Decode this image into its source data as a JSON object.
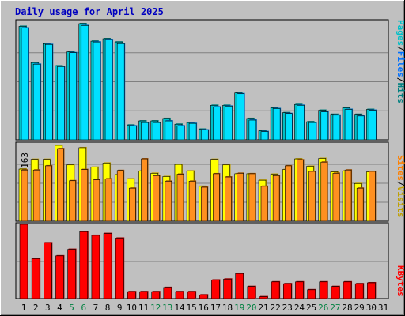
{
  "title": "Daily usage for April 2025",
  "colors": {
    "background": "#C0C0C0",
    "hits_face": "#00C0C8",
    "hits_shadow": "#008080",
    "files_face": "#00E0FF",
    "files_shadow": "#0070C0",
    "visits_face": "#FFFF00",
    "visits_shadow": "#C0A000",
    "sites_face": "#FF9020",
    "sites_shadow": "#A05000",
    "kbytes_face": "#FF0000",
    "kbytes_shadow": "#A00000",
    "title_text": "#0000C0",
    "weekend_label": "#008040",
    "weekday_label": "#000000",
    "label_pages": "#00C0C8",
    "label_files": "#0070FF",
    "label_hits": "#008080",
    "label_sites": "#FF8000",
    "label_visits": "#C0A000",
    "label_kbytes": "#FF0000"
  },
  "chart_data": [
    {
      "type": "bar",
      "panel": "hits-files-pages",
      "categories": [
        "1",
        "2",
        "3",
        "4",
        "5",
        "6",
        "7",
        "8",
        "9",
        "10",
        "11",
        "12",
        "13",
        "14",
        "15",
        "16",
        "17",
        "18",
        "19",
        "20",
        "21",
        "22",
        "23",
        "24",
        "25",
        "26",
        "27",
        "28",
        "29",
        "30",
        "31"
      ],
      "weekend_days": [
        "5",
        "6",
        "12",
        "13",
        "19",
        "20",
        "26",
        "27"
      ],
      "ymax_label": "7063",
      "ylim": [
        0,
        7063
      ],
      "legend": {
        "pages": "Pages",
        "files": "Files",
        "hits": "Hits",
        "separator": "/"
      },
      "series": [
        {
          "name": "Hits",
          "values": [
            6900,
            4700,
            5850,
            4500,
            5350,
            7063,
            6000,
            6150,
            5950,
            900,
            1150,
            1150,
            1300,
            950,
            1050,
            650,
            2100,
            2100,
            2850,
            1300,
            550,
            1950,
            1650,
            2150,
            1100,
            1800,
            1550,
            1950,
            1550,
            1850,
            0
          ]
        },
        {
          "name": "Files",
          "values": [
            6800,
            4600,
            5800,
            4450,
            5300,
            6950,
            5950,
            6100,
            5850,
            850,
            1050,
            1050,
            1150,
            850,
            1000,
            600,
            2000,
            2050,
            2800,
            1200,
            500,
            1900,
            1600,
            2100,
            1050,
            1700,
            1500,
            1850,
            1450,
            1800,
            0
          ]
        }
      ]
    },
    {
      "type": "bar",
      "panel": "visits-sites",
      "categories": [
        "1",
        "2",
        "3",
        "4",
        "5",
        "6",
        "7",
        "8",
        "9",
        "10",
        "11",
        "12",
        "13",
        "14",
        "15",
        "16",
        "17",
        "18",
        "19",
        "20",
        "21",
        "22",
        "23",
        "24",
        "25",
        "26",
        "27",
        "28",
        "29",
        "30",
        "31"
      ],
      "ymax_label": "163",
      "ylim": [
        0,
        163
      ],
      "legend": {
        "sites": "Sites",
        "visits": "Visits",
        "separator": "/"
      },
      "series": [
        {
          "name": "Visits",
          "values": [
            112,
            133,
            133,
            163,
            121,
            158,
            116,
            125,
            100,
            91,
            108,
            103,
            96,
            122,
            108,
            75,
            133,
            121,
            102,
            102,
            88,
            101,
            111,
            134,
            118,
            135,
            106,
            108,
            81,
            106,
            0
          ]
        },
        {
          "name": "Sites",
          "values": [
            110,
            110,
            119,
            156,
            87,
            111,
            89,
            91,
            109,
            71,
            134,
            98,
            86,
            101,
            86,
            73,
            102,
            95,
            103,
            102,
            75,
            98,
            119,
            132,
            107,
            127,
            103,
            110,
            71,
            107,
            0
          ]
        }
      ]
    },
    {
      "type": "bar",
      "panel": "kbytes",
      "categories": [
        "1",
        "2",
        "3",
        "4",
        "5",
        "6",
        "7",
        "8",
        "9",
        "10",
        "11",
        "12",
        "13",
        "14",
        "15",
        "16",
        "17",
        "18",
        "19",
        "20",
        "21",
        "22",
        "23",
        "24",
        "25",
        "26",
        "27",
        "28",
        "29",
        "30",
        "31"
      ],
      "ymax_label": "798377",
      "ylim": [
        0,
        798377
      ],
      "legend": {
        "kbytes": "KBytes"
      },
      "series": [
        {
          "name": "KBytes",
          "values": [
            798377,
            430000,
            600000,
            460000,
            530000,
            720000,
            680000,
            700000,
            650000,
            75000,
            75000,
            75000,
            120000,
            75000,
            75000,
            40000,
            200000,
            210000,
            270000,
            130000,
            20000,
            180000,
            160000,
            180000,
            95000,
            180000,
            130000,
            180000,
            160000,
            170000,
            0
          ]
        }
      ]
    }
  ]
}
